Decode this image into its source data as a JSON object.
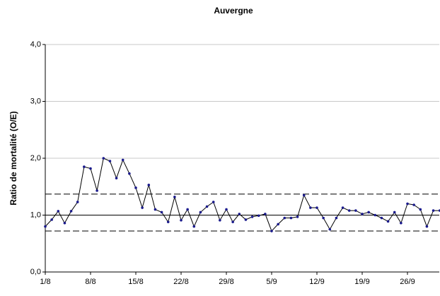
{
  "chart_data": {
    "type": "line",
    "title": "Auvergne",
    "y_label": "Ratio de mortalité (O/E)",
    "categories": [
      "1/8",
      null,
      null,
      null,
      null,
      null,
      null,
      "8/8",
      null,
      null,
      null,
      null,
      null,
      null,
      "15/8",
      null,
      null,
      null,
      null,
      null,
      null,
      "22/8",
      null,
      null,
      null,
      null,
      null,
      null,
      "29/8",
      null,
      null,
      null,
      null,
      null,
      null,
      "5/9",
      null,
      null,
      null,
      null,
      null,
      null,
      "12/9",
      null,
      null,
      null,
      null,
      null,
      null,
      "19/9",
      null,
      null,
      null,
      null,
      null,
      null,
      "26/9",
      null,
      null,
      null,
      null,
      null
    ],
    "series": [
      {
        "color": "#000000",
        "marker_color": "#1a1a8c",
        "values": [
          0.8,
          0.92,
          1.07,
          0.86,
          1.07,
          1.23,
          1.85,
          1.82,
          1.43,
          2.0,
          1.95,
          1.65,
          1.97,
          1.73,
          1.48,
          1.13,
          1.53,
          1.1,
          1.05,
          0.88,
          1.32,
          0.91,
          1.1,
          0.8,
          1.05,
          1.15,
          1.23,
          0.91,
          1.1,
          0.88,
          1.02,
          0.92,
          0.97,
          0.99,
          1.02,
          0.72,
          0.84,
          0.95,
          0.95,
          0.97,
          1.35,
          1.13,
          1.13,
          0.95,
          0.75,
          0.95,
          1.13,
          1.08,
          1.08,
          1.02,
          1.05,
          1.0,
          0.95,
          0.89,
          1.05,
          0.86,
          1.2,
          1.18,
          1.1,
          0.8,
          1.08,
          1.08
        ]
      }
    ],
    "reference_lines": [
      {
        "value": 1.37,
        "dashed": true
      },
      {
        "value": 1.0,
        "dashed": false
      },
      {
        "value": 0.72,
        "dashed": true
      }
    ],
    "ylim": [
      0,
      4
    ],
    "yticks": [
      {
        "value": 0,
        "label": "0,0"
      },
      {
        "value": 1,
        "label": "1,0"
      },
      {
        "value": 2,
        "label": "2,0"
      },
      {
        "value": 3,
        "label": "3,0"
      },
      {
        "value": 4,
        "label": "4,0"
      }
    ],
    "grid": true
  }
}
